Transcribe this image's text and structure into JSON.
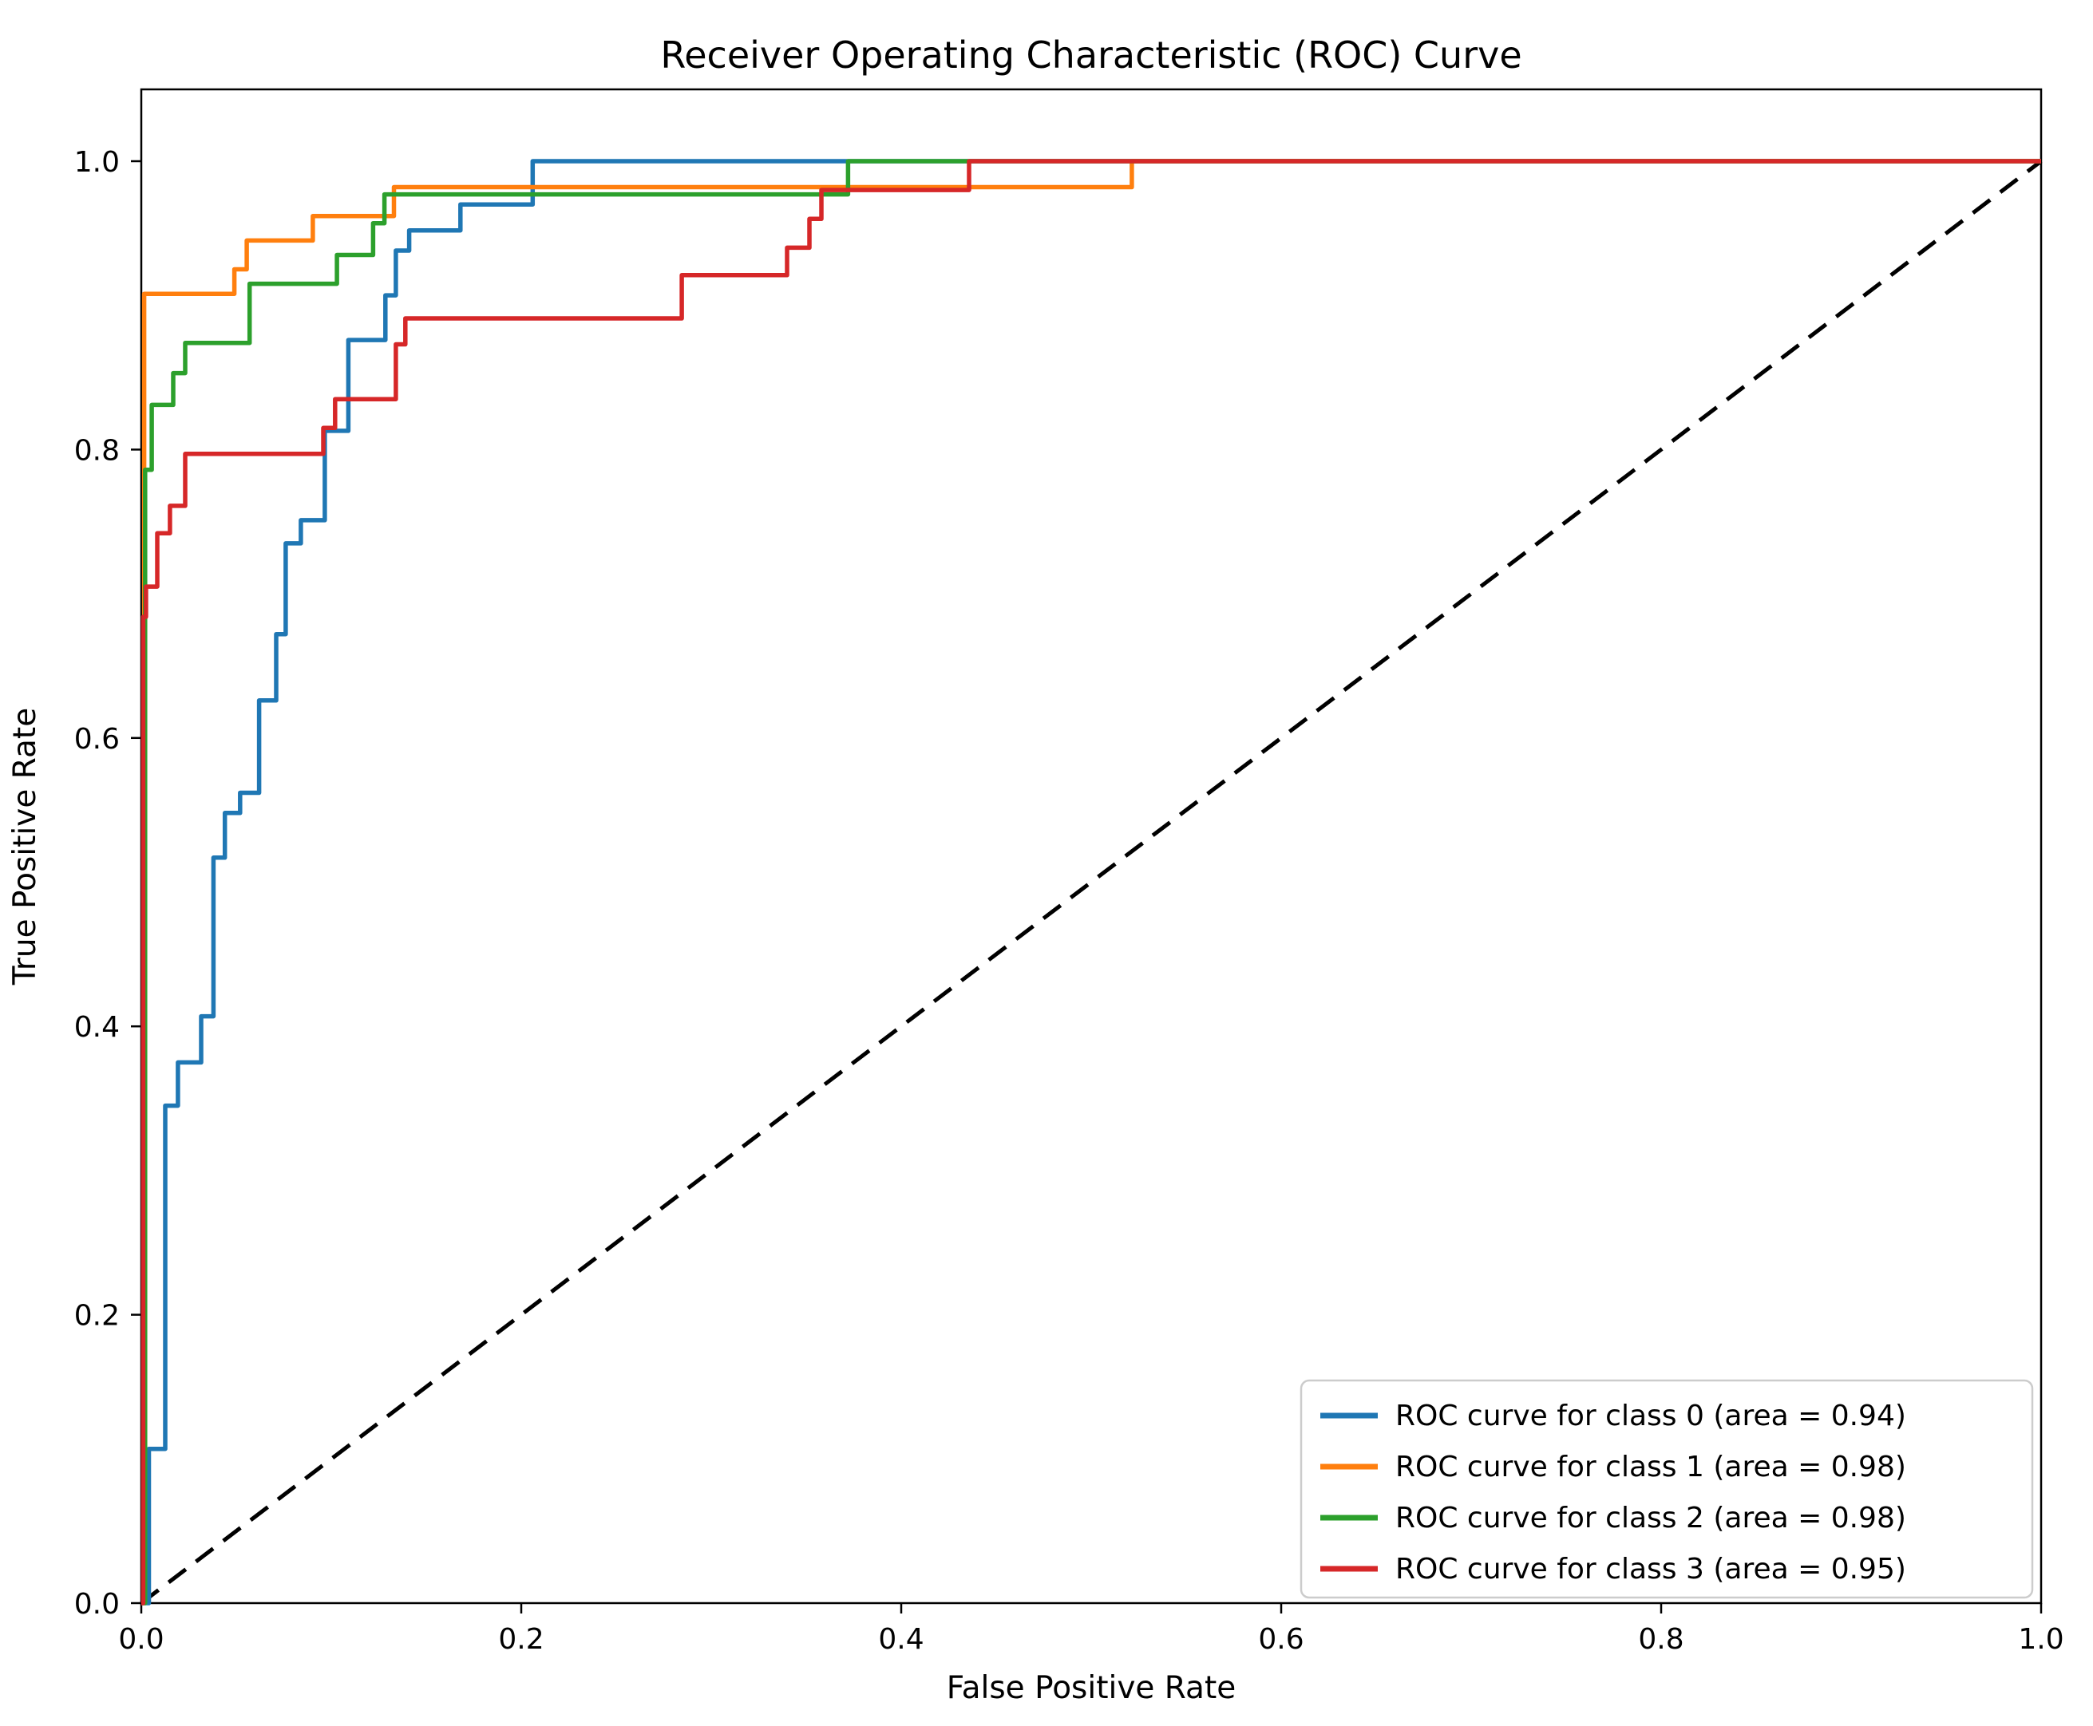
{
  "chart_data": {
    "type": "line",
    "title": "Receiver Operating Characteristic (ROC) Curve",
    "xlabel": "False Positive Rate",
    "ylabel": "True Positive Rate",
    "xlim": [
      0.0,
      1.0
    ],
    "ylim": [
      0.0,
      1.05
    ],
    "x_ticks": [
      "0.0",
      "0.2",
      "0.4",
      "0.6",
      "0.8",
      "1.0"
    ],
    "y_ticks": [
      "0.0",
      "0.2",
      "0.4",
      "0.6",
      "0.8",
      "1.0"
    ],
    "grid": false,
    "legend_position": "lower right",
    "background_color": "#ffffff",
    "axis_color": "#000000",
    "reference_line": {
      "name": "chance-diagonal",
      "style": "dashed",
      "color": "#000000",
      "points": [
        [
          0,
          0
        ],
        [
          1,
          1
        ]
      ]
    },
    "series": [
      {
        "name": "ROC curve for class 0 (area = 0.94)",
        "class": 0,
        "auc": 0.94,
        "color": "#1f77b4",
        "points": [
          [
            0,
            0
          ],
          [
            0.004,
            0
          ],
          [
            0.004,
            0.107
          ],
          [
            0.0126,
            0.107
          ],
          [
            0.0126,
            0.345
          ],
          [
            0.0193,
            0.345
          ],
          [
            0.0193,
            0.375
          ],
          [
            0.0315,
            0.375
          ],
          [
            0.0315,
            0.407
          ],
          [
            0.038,
            0.407
          ],
          [
            0.038,
            0.517
          ],
          [
            0.044,
            0.517
          ],
          [
            0.044,
            0.548
          ],
          [
            0.052,
            0.548
          ],
          [
            0.052,
            0.562
          ],
          [
            0.062,
            0.562
          ],
          [
            0.062,
            0.626
          ],
          [
            0.071,
            0.626
          ],
          [
            0.071,
            0.672
          ],
          [
            0.076,
            0.672
          ],
          [
            0.076,
            0.735
          ],
          [
            0.084,
            0.735
          ],
          [
            0.084,
            0.751
          ],
          [
            0.0966,
            0.751
          ],
          [
            0.0966,
            0.813
          ],
          [
            0.109,
            0.813
          ],
          [
            0.109,
            0.876
          ],
          [
            0.1285,
            0.876
          ],
          [
            0.1285,
            0.907
          ],
          [
            0.134,
            0.907
          ],
          [
            0.134,
            0.938
          ],
          [
            0.141,
            0.938
          ],
          [
            0.141,
            0.952
          ],
          [
            0.168,
            0.952
          ],
          [
            0.168,
            0.97
          ],
          [
            0.206,
            0.97
          ],
          [
            0.206,
            1
          ],
          [
            1,
            1
          ]
        ]
      },
      {
        "name": "ROC curve for class 1 (area = 0.98)",
        "class": 1,
        "auc": 0.98,
        "color": "#ff7f0e",
        "points": [
          [
            0,
            0
          ],
          [
            0.0015,
            0
          ],
          [
            0.0015,
            0.908
          ],
          [
            0.049,
            0.908
          ],
          [
            0.049,
            0.925
          ],
          [
            0.0555,
            0.925
          ],
          [
            0.0555,
            0.945
          ],
          [
            0.0903,
            0.945
          ],
          [
            0.0903,
            0.962
          ],
          [
            0.133,
            0.962
          ],
          [
            0.133,
            0.982
          ],
          [
            0.5214,
            0.982
          ],
          [
            0.5214,
            1
          ],
          [
            1,
            1
          ]
        ]
      },
      {
        "name": "ROC curve for class 2 (area = 0.98)",
        "class": 2,
        "auc": 0.98,
        "color": "#2ca02c",
        "points": [
          [
            0,
            0
          ],
          [
            0.002,
            0
          ],
          [
            0.002,
            0.786
          ],
          [
            0.0055,
            0.786
          ],
          [
            0.0055,
            0.831
          ],
          [
            0.0168,
            0.831
          ],
          [
            0.0168,
            0.853
          ],
          [
            0.0231,
            0.853
          ],
          [
            0.0231,
            0.874
          ],
          [
            0.057,
            0.874
          ],
          [
            0.057,
            0.915
          ],
          [
            0.103,
            0.915
          ],
          [
            0.103,
            0.935
          ],
          [
            0.122,
            0.935
          ],
          [
            0.122,
            0.957
          ],
          [
            0.128,
            0.957
          ],
          [
            0.128,
            0.977
          ],
          [
            0.372,
            0.977
          ],
          [
            0.372,
            1
          ],
          [
            1,
            1
          ]
        ]
      },
      {
        "name": "ROC curve for class 3 (area = 0.95)",
        "class": 3,
        "auc": 0.95,
        "color": "#d62728",
        "points": [
          [
            0,
            0
          ],
          [
            0.001,
            0
          ],
          [
            0.001,
            0.684
          ],
          [
            0.0025,
            0.684
          ],
          [
            0.0025,
            0.705
          ],
          [
            0.0084,
            0.705
          ],
          [
            0.0084,
            0.742
          ],
          [
            0.0151,
            0.742
          ],
          [
            0.0151,
            0.761
          ],
          [
            0.0231,
            0.761
          ],
          [
            0.0231,
            0.797
          ],
          [
            0.0958,
            0.797
          ],
          [
            0.0958,
            0.815
          ],
          [
            0.102,
            0.815
          ],
          [
            0.102,
            0.835
          ],
          [
            0.134,
            0.835
          ],
          [
            0.134,
            0.873
          ],
          [
            0.139,
            0.873
          ],
          [
            0.139,
            0.891
          ],
          [
            0.2845,
            0.891
          ],
          [
            0.2845,
            0.921
          ],
          [
            0.3399,
            0.921
          ],
          [
            0.3399,
            0.94
          ],
          [
            0.3517,
            0.94
          ],
          [
            0.3517,
            0.96
          ],
          [
            0.358,
            0.96
          ],
          [
            0.358,
            0.98
          ],
          [
            0.4357,
            0.98
          ],
          [
            0.4357,
            1
          ],
          [
            1,
            1
          ]
        ]
      }
    ],
    "legend_border_color": "#cccccc"
  }
}
